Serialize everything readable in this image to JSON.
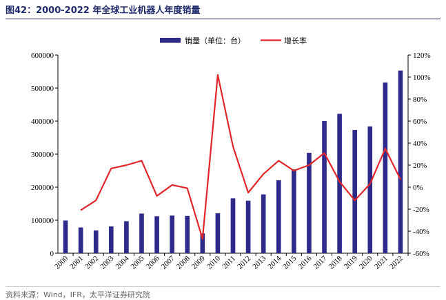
{
  "figure": {
    "title": "图42：2000-2022 年全球工业机器人年度销量",
    "source": "资料来源：Wind，IFR，太平洋证券研究院"
  },
  "chart_data": {
    "type": "bar",
    "categories": [
      "2000",
      "2001",
      "2002",
      "2003",
      "2004",
      "2005",
      "2006",
      "2007",
      "2008",
      "2009",
      "2010",
      "2011",
      "2012",
      "2013",
      "2014",
      "2015",
      "2016",
      "2017",
      "2018",
      "2019",
      "2020",
      "2021",
      "2022"
    ],
    "series": [
      {
        "name": "销量（单位：台）",
        "type": "bar",
        "axis": "left",
        "color": "#2e2a8a",
        "values": [
          99000,
          78000,
          69000,
          81000,
          97000,
          120000,
          112000,
          114000,
          113000,
          60000,
          121000,
          166000,
          159000,
          178000,
          221000,
          254000,
          304000,
          400000,
          422000,
          373000,
          384000,
          517000,
          553000
        ]
      },
      {
        "name": "增长率",
        "type": "line",
        "axis": "right",
        "color": "#e0262b",
        "values": [
          null,
          -21,
          -12,
          17,
          20,
          24,
          -8,
          2,
          -1,
          -47,
          102,
          37,
          -5,
          12,
          24,
          15,
          20,
          31,
          5,
          -12,
          3,
          35,
          7
        ]
      }
    ],
    "y_left": {
      "ylim": [
        0,
        600000
      ],
      "ticks": [
        0,
        100000,
        200000,
        300000,
        400000,
        500000,
        600000
      ],
      "tick_labels": [
        "0",
        "100000",
        "200000",
        "300000",
        "400000",
        "500000",
        "600000"
      ]
    },
    "y_right": {
      "ylim": [
        -60,
        120
      ],
      "ticks": [
        -60,
        -40,
        -20,
        0,
        20,
        40,
        60,
        80,
        100,
        120
      ],
      "tick_labels": [
        "-60%",
        "-40%",
        "-20%",
        "0%",
        "20%",
        "40%",
        "60%",
        "80%",
        "100%",
        "120%"
      ]
    },
    "legend": {
      "placement": "top-center",
      "items": [
        "销量（单位：台）",
        "增长率"
      ]
    },
    "grid": false
  }
}
